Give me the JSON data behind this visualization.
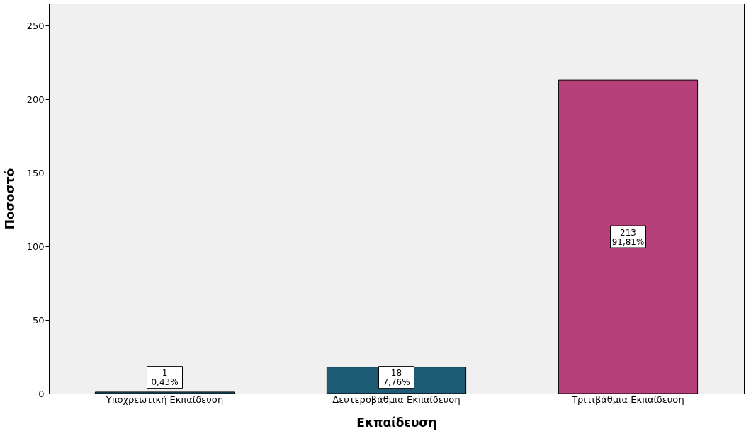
{
  "chart_data": {
    "type": "bar",
    "xlabel": "Εκπαίδευση",
    "ylabel": "Ποσοστό",
    "categories": [
      "Υποχρεωτική Εκπαίδευση",
      "Δευτεροβάθμια Εκπαίδευση",
      "Τριτιβάθμια Εκπαίδευση"
    ],
    "values": [
      1,
      18,
      213
    ],
    "colors": [
      "#1d5b74",
      "#1d5b74",
      "#b8407a"
    ],
    "value_labels": [
      "1\n0,43%",
      "18\n7,76%",
      "213\n91,81%"
    ],
    "ylim": [
      0,
      265
    ],
    "yticks": [
      0,
      50,
      100,
      150,
      200,
      250
    ],
    "grid": false
  }
}
